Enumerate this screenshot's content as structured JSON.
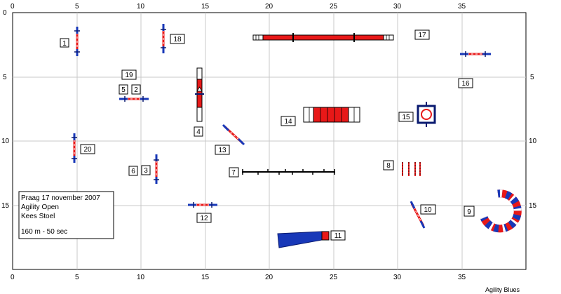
{
  "axes": {
    "top_ticks": [
      "0",
      "5",
      "10",
      "15",
      "20",
      "25",
      "30",
      "35"
    ],
    "bottom_ticks": [
      "0",
      "5",
      "10",
      "15",
      "20",
      "25",
      "30",
      "35"
    ],
    "left_ticks": [
      "0",
      "5",
      "10",
      "15"
    ],
    "right_ticks": [
      "5",
      "10",
      "15"
    ]
  },
  "info": {
    "line1": "Praag 17 november 2007",
    "line2": "Agility Open",
    "line3": "Kees Stoel",
    "line4": "160 m - 50 sec"
  },
  "footer": {
    "brand": "Agility Blues"
  },
  "obstacle_numbers": {
    "n1": "1",
    "n2": "2",
    "n3": "3",
    "n4": "4",
    "n5": "5",
    "n6": "6",
    "n7": "7",
    "n8": "8",
    "n9": "9",
    "n10": "10",
    "n11": "11",
    "n12": "12",
    "n13": "13",
    "n14": "14",
    "n15": "15",
    "n16": "16",
    "n17": "17",
    "n18": "18",
    "n19": "19",
    "n20": "20"
  },
  "colors": {
    "grid": "#c8c8c8",
    "red": "#e81818",
    "blue": "#1838b8",
    "navy": "#0a1a70"
  }
}
